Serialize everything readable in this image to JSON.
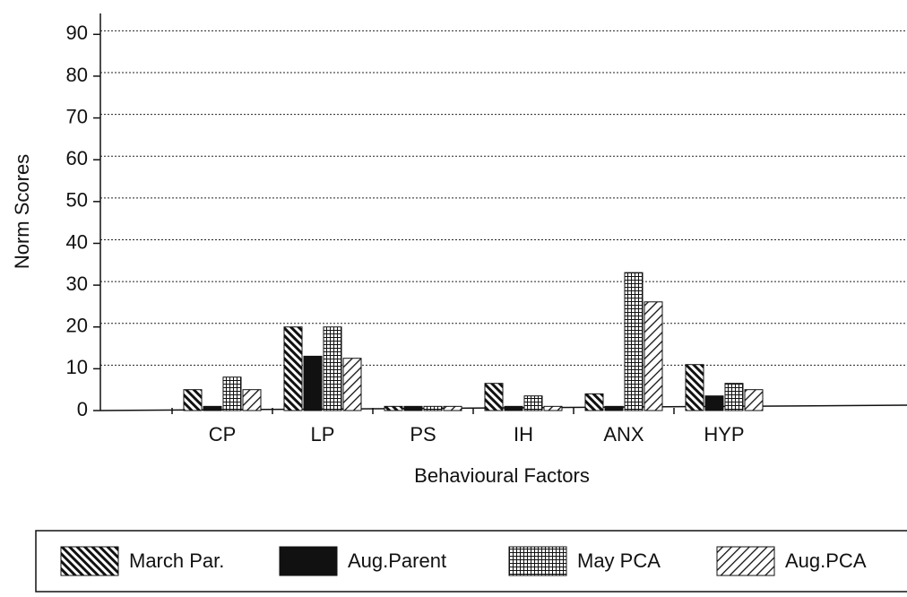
{
  "chart_data": {
    "type": "bar",
    "y_label": "Norm Scores",
    "x_label": "Behavioural Factors",
    "categories": [
      "CP",
      "LP",
      "PS",
      "IH",
      "ANX",
      "HYP"
    ],
    "series": [
      {
        "name": "March Par.",
        "color": "#111111",
        "pattern": "backslash",
        "values": [
          5,
          20,
          1,
          6.5,
          4,
          11
        ]
      },
      {
        "name": "Aug.Parent",
        "color": "#111111",
        "pattern": "solid",
        "values": [
          1,
          13,
          1,
          1,
          1,
          3.5
        ]
      },
      {
        "name": "May PCA",
        "color": "#111111",
        "pattern": "grid",
        "values": [
          8,
          20,
          1,
          3.5,
          33,
          6.5
        ]
      },
      {
        "name": "Aug.PCA",
        "color": "#111111",
        "pattern": "slash",
        "values": [
          5,
          12.5,
          1,
          1,
          26,
          5
        ]
      }
    ],
    "ylim": [
      0,
      95
    ],
    "yticks": [
      0,
      10,
      20,
      30,
      40,
      50,
      60,
      70,
      80,
      90
    ],
    "grid": true,
    "legend": "bottom"
  }
}
